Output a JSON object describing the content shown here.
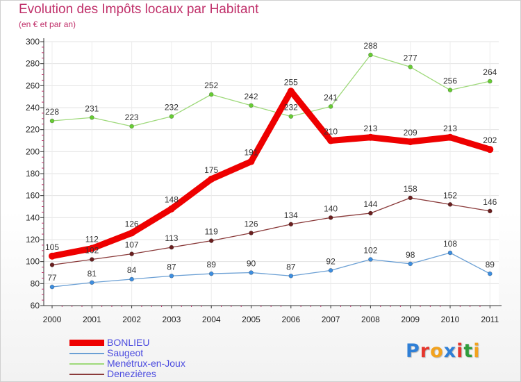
{
  "title": "Evolution des Impôts locaux par Habitant",
  "subtitle": "(en € et par an)",
  "brand": {
    "text": "Proxiti",
    "letters": [
      "P",
      "r",
      "o",
      "x",
      "i",
      "t",
      "i"
    ],
    "letter_colors": [
      "#2f7fd6",
      "#e6362d",
      "#f2a21e",
      "#2f7fd6",
      "#e6362d",
      "#2f9c3c",
      "#f2a21e"
    ]
  },
  "chart_data": {
    "type": "line",
    "x": [
      "2000",
      "2001",
      "2002",
      "2003",
      "2004",
      "2005",
      "2006",
      "2007",
      "2008",
      "2009",
      "2010",
      "2011"
    ],
    "ylim": [
      60,
      300
    ],
    "yticks": [
      60,
      80,
      100,
      120,
      140,
      160,
      180,
      200,
      220,
      240,
      260,
      280,
      300
    ],
    "grid": true,
    "legend_position": "bottom-left",
    "series": [
      {
        "name": "BONLIEU",
        "color": "#ee0000",
        "marker_color": "#ee0000",
        "emphasis": true,
        "values": [
          105,
          112,
          126,
          148,
          175,
          191,
          255,
          210,
          213,
          209,
          213,
          202
        ],
        "labels": [
          "105",
          "112",
          "126",
          "148",
          "175",
          "191",
          "255",
          "210",
          "213",
          "209",
          "213",
          "202"
        ]
      },
      {
        "name": "Saugeot",
        "color": "#6a9fd4",
        "marker_color": "#3d8ee0",
        "values": [
          77,
          81,
          84,
          87,
          89,
          90,
          87,
          92,
          102,
          98,
          108,
          89
        ],
        "labels": [
          "77",
          "81",
          "84",
          "87",
          "89",
          "90",
          "87",
          "92",
          "102",
          "98",
          "108",
          "89"
        ]
      },
      {
        "name": "Menétrux-en-Joux",
        "color": "#9ed97a",
        "marker_color": "#66cc33",
        "values": [
          228,
          231,
          223,
          232,
          252,
          242,
          232,
          241,
          288,
          277,
          256,
          264
        ],
        "labels": [
          "228",
          "231",
          "223",
          "232",
          "252",
          "242",
          "232",
          "241",
          "288",
          "277",
          "256",
          "264"
        ]
      },
      {
        "name": "Denezières",
        "color": "#8a3a3a",
        "marker_color": "#6a1f1f",
        "values": [
          97,
          102,
          107,
          113,
          119,
          126,
          134,
          140,
          144,
          158,
          152,
          146
        ],
        "labels": [
          "",
          "102",
          "107",
          "113",
          "119",
          "126",
          "134",
          "140",
          "144",
          "158",
          "152",
          "146"
        ]
      }
    ]
  }
}
